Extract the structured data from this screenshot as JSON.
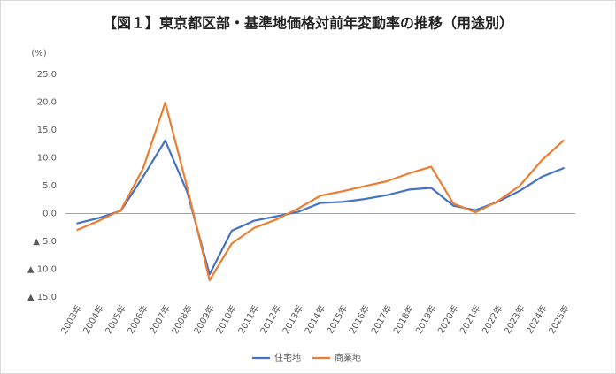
{
  "chart_data": {
    "type": "line",
    "title": "【図１】東京都区部・基準地価格対前年変動率の推移（用途別）",
    "y_label": "(%)",
    "categories": [
      "2003年",
      "2004年",
      "2005年",
      "2006年",
      "2007年",
      "2008年",
      "2009年",
      "2010年",
      "2011年",
      "2012年",
      "2013年",
      "2014年",
      "2015年",
      "2016年",
      "2017年",
      "2018年",
      "2019年",
      "2020年",
      "2021年",
      "2022年",
      "2023年",
      "2024年",
      "2025年"
    ],
    "series": [
      {
        "name": "住宅地",
        "color": "#4472c4",
        "values": [
          -1.8,
          -0.8,
          0.5,
          6.6,
          13.1,
          3.8,
          -10.9,
          -3.1,
          -1.3,
          -0.5,
          0.3,
          1.9,
          2.1,
          2.6,
          3.3,
          4.3,
          4.6,
          1.4,
          0.6,
          2.1,
          4.1,
          6.6,
          8.2
        ]
      },
      {
        "name": "商業地",
        "color": "#ed7d31",
        "values": [
          -3.0,
          -1.3,
          0.6,
          8.1,
          19.9,
          4.6,
          -12.0,
          -5.4,
          -2.6,
          -1.1,
          0.9,
          3.2,
          4.0,
          4.9,
          5.8,
          7.2,
          8.4,
          1.8,
          0.2,
          2.2,
          5.0,
          9.6,
          13.2
        ]
      }
    ],
    "ylim": [
      -15,
      25
    ],
    "yticks": [
      {
        "value": 25,
        "label": "25.0"
      },
      {
        "value": 20,
        "label": "20.0"
      },
      {
        "value": 15,
        "label": "15.0"
      },
      {
        "value": 10,
        "label": "10.0"
      },
      {
        "value": 5,
        "label": "5.0"
      },
      {
        "value": 0,
        "label": "0.0"
      },
      {
        "value": -5,
        "label": "▲ 5.0"
      },
      {
        "value": -10,
        "label": "▲ 10.0"
      },
      {
        "value": -15,
        "label": "▲ 15.0"
      }
    ],
    "legend": "bottom"
  }
}
